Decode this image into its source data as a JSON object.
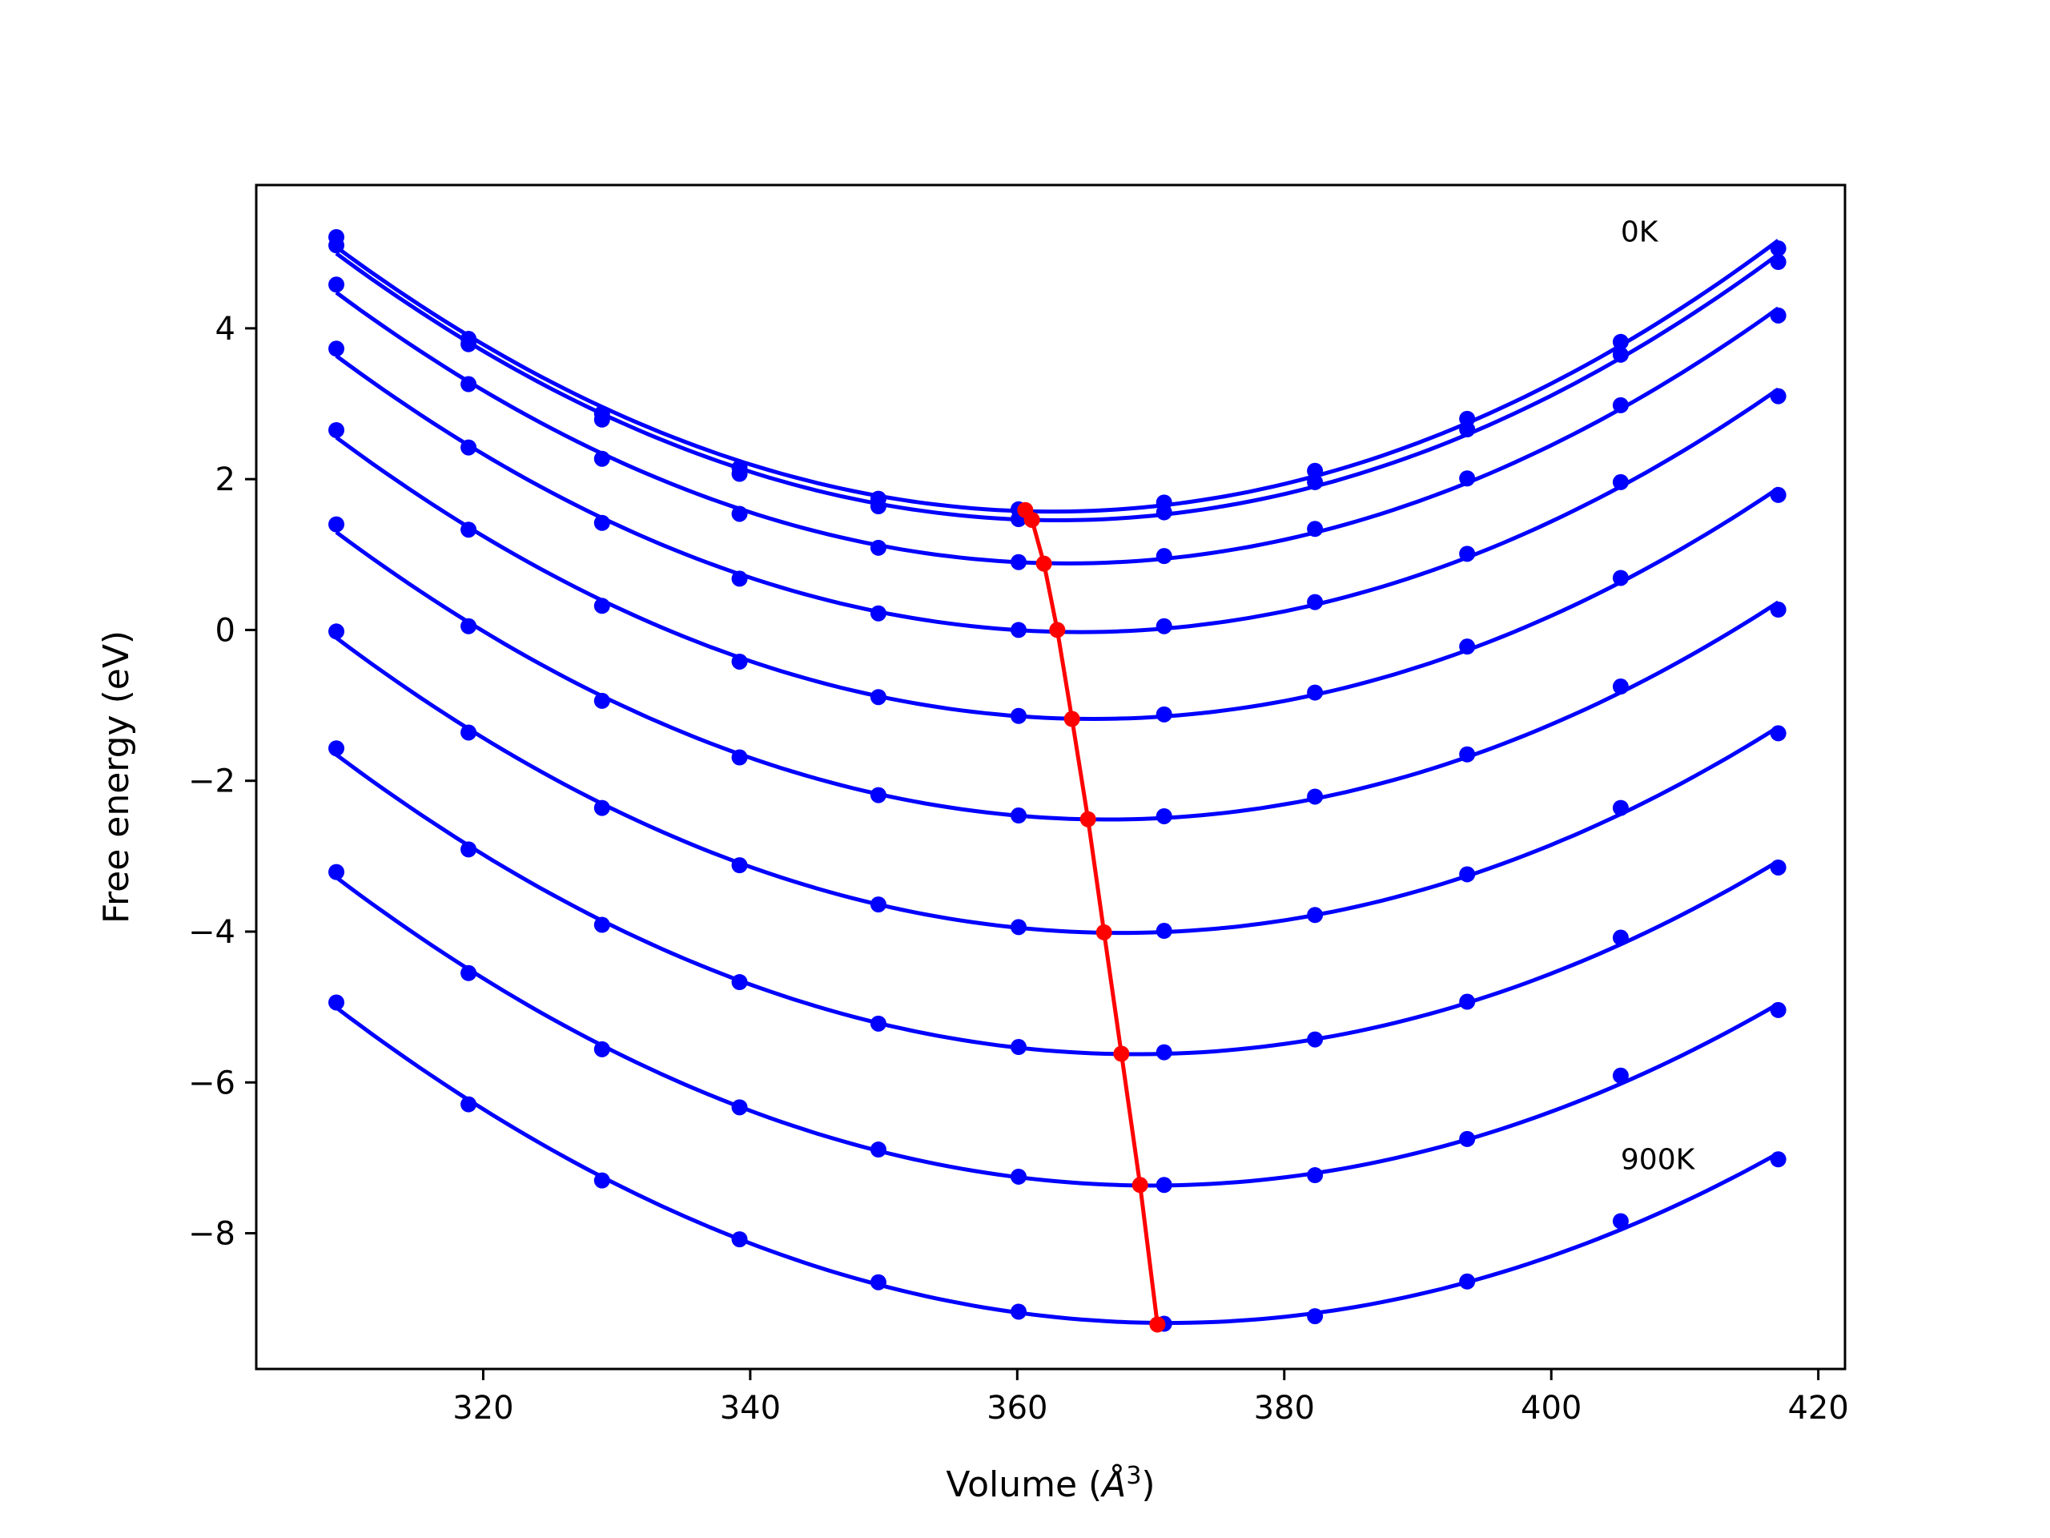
{
  "chart_data": {
    "type": "line",
    "title": "",
    "xlabel": "Volume (",
    "xlabel_unit": "Å",
    "xlabel_exp": "3",
    "xlabel_close": ")",
    "ylabel": "Free energy (eV)",
    "xlim": [
      303,
      422
    ],
    "ylim": [
      -9.8,
      5.9
    ],
    "x_ticks": [
      320,
      340,
      360,
      380,
      400,
      420
    ],
    "x_tick_labels": [
      "320",
      "340",
      "360",
      "380",
      "400",
      "420"
    ],
    "y_ticks": [
      4,
      2,
      0,
      -2,
      -4,
      -6,
      -8
    ],
    "y_tick_labels": [
      "4",
      "2",
      "0",
      "−2",
      "−4",
      "−6",
      "−8"
    ],
    "grid": false,
    "legend": "none",
    "curve_color": "#0000ff",
    "min_line_color": "#ff0000",
    "x": [
      309.0,
      318.9,
      328.9,
      339.2,
      349.6,
      360.1,
      371.0,
      382.3,
      393.7,
      405.2,
      417.0
    ],
    "series": [
      {
        "values": [
          5.21,
          3.86,
          2.87,
          2.15,
          1.74,
          1.6,
          1.69,
          2.11,
          2.8,
          3.82,
          5.06
        ]
      },
      {
        "values": [
          5.1,
          3.79,
          2.79,
          2.07,
          1.64,
          1.47,
          1.56,
          1.96,
          2.66,
          3.65,
          4.88
        ]
      },
      {
        "values": [
          4.58,
          3.26,
          2.27,
          1.54,
          1.09,
          0.9,
          0.98,
          1.34,
          2.01,
          2.98,
          4.17
        ]
      },
      {
        "values": [
          3.73,
          2.42,
          1.42,
          0.68,
          0.22,
          0.0,
          0.05,
          0.37,
          1.01,
          1.96,
          3.1
        ]
      },
      {
        "values": [
          2.65,
          1.33,
          0.32,
          -0.42,
          -0.89,
          -1.14,
          -1.12,
          -0.83,
          -0.22,
          0.69,
          1.79
        ]
      },
      {
        "values": [
          1.4,
          0.05,
          -0.94,
          -1.69,
          -2.19,
          -2.46,
          -2.47,
          -2.21,
          -1.65,
          -0.75,
          0.27
        ]
      },
      {
        "values": [
          -0.02,
          -1.36,
          -2.36,
          -3.12,
          -3.64,
          -3.94,
          -3.99,
          -3.78,
          -3.24,
          -2.36,
          -1.37
        ]
      },
      {
        "values": [
          -1.57,
          -2.91,
          -3.91,
          -4.67,
          -5.22,
          -5.53,
          -5.6,
          -5.43,
          -4.93,
          -4.08,
          -3.15
        ]
      },
      {
        "values": [
          -3.21,
          -4.55,
          -5.56,
          -6.33,
          -6.89,
          -7.25,
          -7.36,
          -7.23,
          -6.75,
          -5.91,
          -5.04
        ]
      },
      {
        "values": [
          -4.94,
          -6.29,
          -7.3,
          -8.08,
          -8.65,
          -9.04,
          -9.2,
          -9.1,
          -8.64,
          -7.84,
          -7.02
        ]
      }
    ],
    "minima": {
      "x": [
        360.6,
        361.1,
        362.0,
        363.0,
        364.1,
        365.3,
        366.5,
        367.8,
        369.2,
        370.5
      ],
      "y": [
        1.59,
        1.46,
        0.88,
        0.0,
        -1.18,
        -2.51,
        -4.01,
        -5.62,
        -7.36,
        -9.21
      ]
    },
    "annotations": [
      {
        "text": "0K",
        "x": 405.2,
        "y": 5.15
      },
      {
        "text": "900K",
        "x": 405.2,
        "y": -7.15
      }
    ]
  }
}
